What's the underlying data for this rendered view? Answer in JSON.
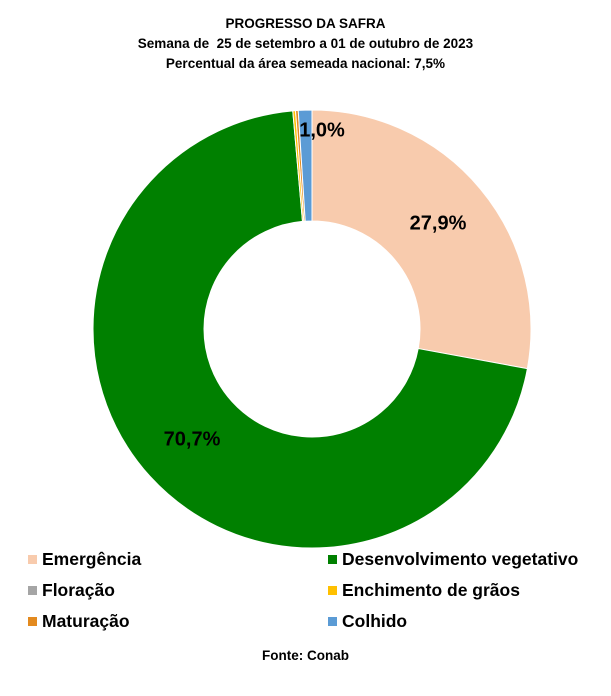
{
  "chart_data": {
    "type": "pie",
    "variant": "donut",
    "title": "PROGRESSO DA SAFRA",
    "subtitle_1": "Semana de  25 de setembro a 01 de outubro de 2023",
    "subtitle_2": "Percentual da área semeada nacional: 7,5%",
    "series": [
      {
        "name": "Emergência",
        "value": 27.9,
        "label": "27,9%",
        "color": "#f8cbad"
      },
      {
        "name": "Desenvolvimento vegetativo",
        "value": 70.7,
        "label": "70,7%",
        "color": "#008000"
      },
      {
        "name": "Floração",
        "value": 0.0,
        "label": "",
        "color": "#a5a5a5"
      },
      {
        "name": "Enchimento de grãos",
        "value": 0.2,
        "label": "",
        "color": "#ffc000"
      },
      {
        "name": "Maturação",
        "value": 0.2,
        "label": "",
        "color": "#e38a1f"
      },
      {
        "name": "Colhido",
        "value": 1.0,
        "label": "1,0%",
        "color": "#5b9bd5"
      }
    ],
    "legend_position": "bottom",
    "source": "Fonte: Conab"
  }
}
